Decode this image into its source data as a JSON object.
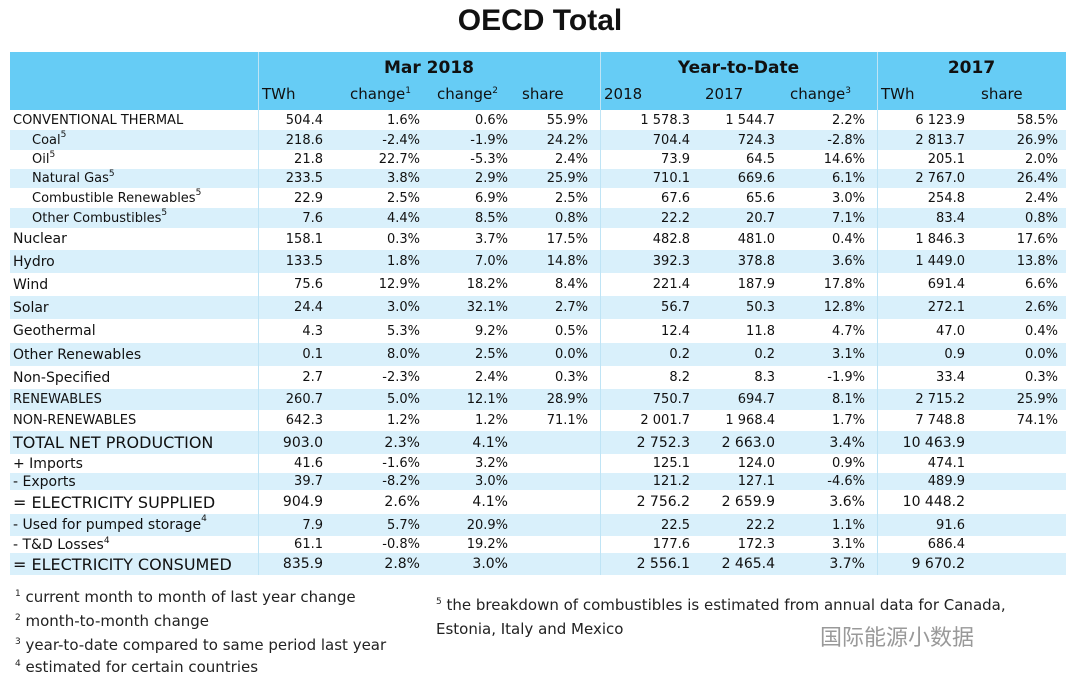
{
  "title": "OECD Total",
  "header": {
    "groups": [
      "Mar 2018",
      "Year-to-Date",
      "2017"
    ],
    "columns": [
      {
        "text": "TWh"
      },
      {
        "text": "change",
        "note": "1"
      },
      {
        "text": "change",
        "note": "2"
      },
      {
        "text": "share"
      },
      {
        "text": "2018"
      },
      {
        "text": "2017"
      },
      {
        "text": "change",
        "note": "3"
      },
      {
        "text": "TWh"
      },
      {
        "text": "share"
      }
    ]
  },
  "table": {
    "rows": [
      {
        "label": "CONVENTIONAL THERMAL",
        "cells": [
          "504.4",
          "1.6%",
          "0.6%",
          "55.9%",
          "1 578.3",
          "1 544.7",
          "2.2%",
          "6 123.9",
          "58.5%"
        ]
      },
      {
        "label": "Coal",
        "note": "5",
        "cells": [
          "218.6",
          "-2.4%",
          "-1.9%",
          "24.2%",
          "704.4",
          "724.3",
          "-2.8%",
          "2 813.7",
          "26.9%"
        ]
      },
      {
        "label": "Oil",
        "note": "5",
        "cells": [
          "21.8",
          "22.7%",
          "-5.3%",
          "2.4%",
          "73.9",
          "64.5",
          "14.6%",
          "205.1",
          "2.0%"
        ]
      },
      {
        "label": "Natural Gas",
        "note": "5",
        "cells": [
          "233.5",
          "3.8%",
          "2.9%",
          "25.9%",
          "710.1",
          "669.6",
          "6.1%",
          "2 767.0",
          "26.4%"
        ]
      },
      {
        "label": "Combustible Renewables",
        "note": "5",
        "cells": [
          "22.9",
          "2.5%",
          "6.9%",
          "2.5%",
          "67.6",
          "65.6",
          "3.0%",
          "254.8",
          "2.4%"
        ]
      },
      {
        "label": "Other Combustibles",
        "note": "5",
        "cells": [
          "7.6",
          "4.4%",
          "8.5%",
          "0.8%",
          "22.2",
          "20.7",
          "7.1%",
          "83.4",
          "0.8%"
        ]
      },
      {
        "label": "Nuclear",
        "cells": [
          "158.1",
          "0.3%",
          "3.7%",
          "17.5%",
          "482.8",
          "481.0",
          "0.4%",
          "1 846.3",
          "17.6%"
        ]
      },
      {
        "label": "Hydro",
        "cells": [
          "133.5",
          "1.8%",
          "7.0%",
          "14.8%",
          "392.3",
          "378.8",
          "3.6%",
          "1 449.0",
          "13.8%"
        ]
      },
      {
        "label": "Wind",
        "cells": [
          "75.6",
          "12.9%",
          "18.2%",
          "8.4%",
          "221.4",
          "187.9",
          "17.8%",
          "691.4",
          "6.6%"
        ]
      },
      {
        "label": "Solar",
        "cells": [
          "24.4",
          "3.0%",
          "32.1%",
          "2.7%",
          "56.7",
          "50.3",
          "12.8%",
          "272.1",
          "2.6%"
        ]
      },
      {
        "label": "Geothermal",
        "cells": [
          "4.3",
          "5.3%",
          "9.2%",
          "0.5%",
          "12.4",
          "11.8",
          "4.7%",
          "47.0",
          "0.4%"
        ]
      },
      {
        "label": "Other Renewables",
        "cells": [
          "0.1",
          "8.0%",
          "2.5%",
          "0.0%",
          "0.2",
          "0.2",
          "3.1%",
          "0.9",
          "0.0%"
        ]
      },
      {
        "label": "Non-Specified",
        "cells": [
          "2.7",
          "-2.3%",
          "2.4%",
          "0.3%",
          "8.2",
          "8.3",
          "-1.9%",
          "33.4",
          "0.3%"
        ]
      },
      {
        "label": "RENEWABLES",
        "cells": [
          "260.7",
          "5.0%",
          "12.1%",
          "28.9%",
          "750.7",
          "694.7",
          "8.1%",
          "2 715.2",
          "25.9%"
        ]
      },
      {
        "label": "NON-RENEWABLES",
        "cells": [
          "642.3",
          "1.2%",
          "1.2%",
          "71.1%",
          "2 001.7",
          "1 968.4",
          "1.7%",
          "7 748.8",
          "74.1%"
        ]
      },
      {
        "label": "TOTAL NET PRODUCTION",
        "cells": [
          "903.0",
          "2.3%",
          "4.1%",
          null,
          "2 752.3",
          "2 663.0",
          "3.4%",
          "10 463.9",
          null
        ]
      },
      {
        "label": "+ Imports",
        "cells": [
          "41.6",
          "-1.6%",
          "3.2%",
          null,
          "125.1",
          "124.0",
          "0.9%",
          "474.1",
          null
        ]
      },
      {
        "label": "- Exports",
        "cells": [
          "39.7",
          "-8.2%",
          "3.0%",
          null,
          "121.2",
          "127.1",
          "-4.6%",
          "489.9",
          null
        ]
      },
      {
        "label": "= ELECTRICITY SUPPLIED",
        "cells": [
          "904.9",
          "2.6%",
          "4.1%",
          null,
          "2 756.2",
          "2 659.9",
          "3.6%",
          "10 448.2",
          null
        ]
      },
      {
        "label": "- Used for pumped storage",
        "note": "4",
        "cells": [
          "7.9",
          "5.7%",
          "20.9%",
          null,
          "22.5",
          "22.2",
          "1.1%",
          "91.6",
          null
        ]
      },
      {
        "label": "- T&D Losses",
        "note": "4",
        "cells": [
          "61.1",
          "-0.8%",
          "19.2%",
          null,
          "177.6",
          "172.3",
          "3.1%",
          "686.4",
          null
        ]
      },
      {
        "label": "= ELECTRICITY CONSUMED",
        "cells": [
          "835.9",
          "2.8%",
          "3.0%",
          null,
          "2 556.1",
          "2 465.4",
          "3.7%",
          "9 670.2",
          null
        ]
      }
    ]
  },
  "footnotes": [
    {
      "mark": "1",
      "text": "current month to month of last year change"
    },
    {
      "mark": "2",
      "text": "month-to-month change"
    },
    {
      "mark": "3",
      "text": "year-to-date compared to same period last year"
    },
    {
      "mark": "4",
      "text": "estimated for certain countries"
    },
    {
      "mark": "5",
      "text": "the breakdown of combustibles is estimated  from annual data for Canada, Estonia, Italy and Mexico"
    }
  ],
  "watermark": "国际能源小数据"
}
